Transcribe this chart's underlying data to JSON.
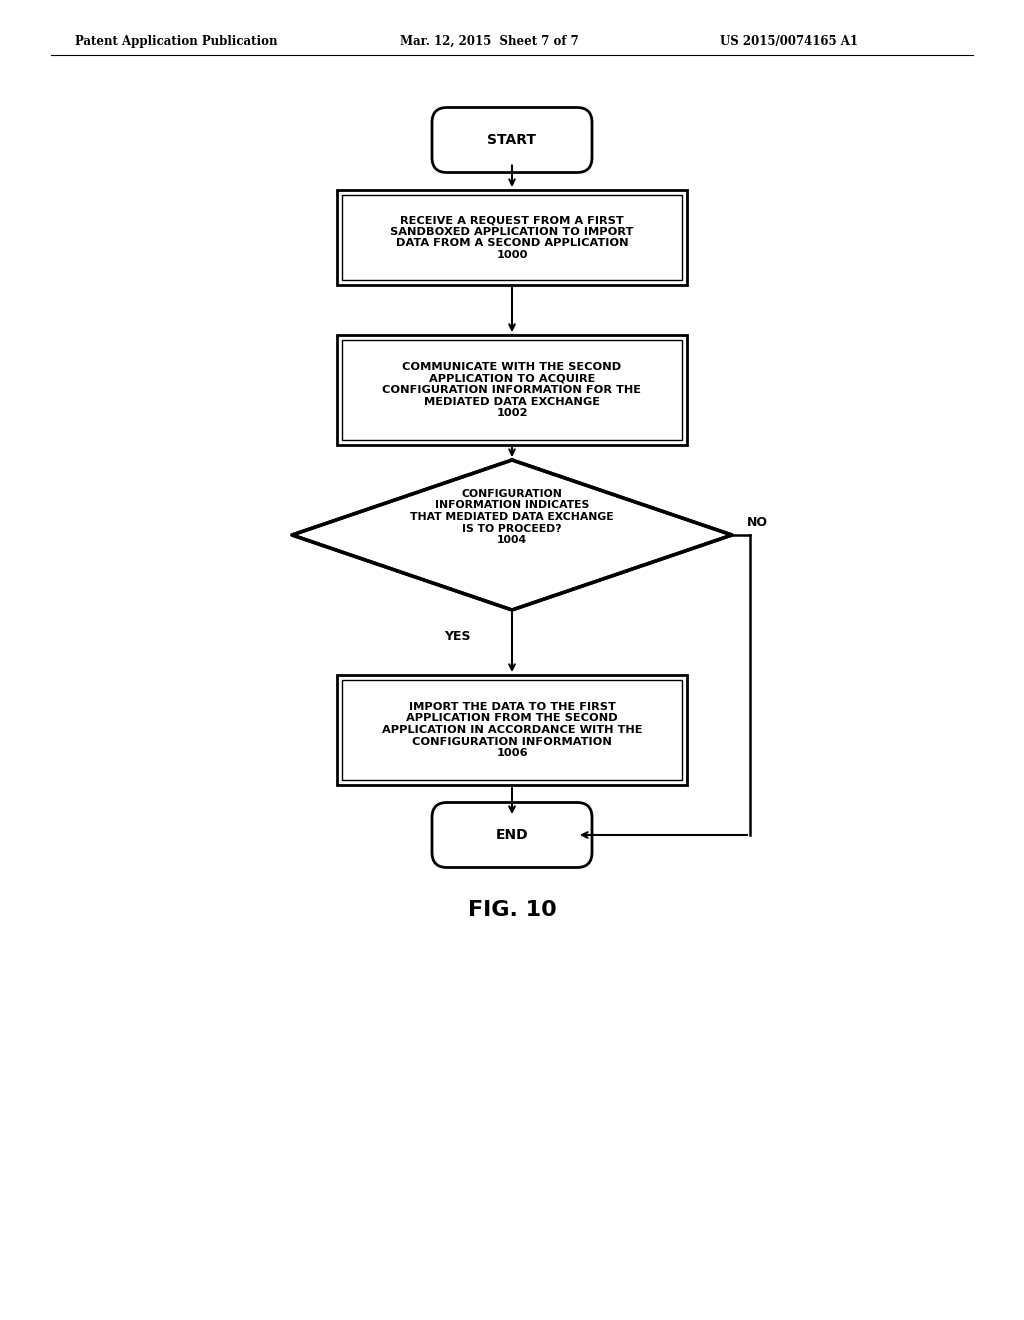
{
  "bg_color": "#ffffff",
  "header_left": "Patent Application Publication",
  "header_center": "Mar. 12, 2015  Sheet 7 of 7",
  "header_right": "US 2015/0074165 A1",
  "fig_label": "FIG. 10",
  "start_label": "START",
  "end_label": "END",
  "box1_text": "RECEIVE A REQUEST FROM A FIRST\nSANDBOXED APPLICATION TO IMPORT\nDATA FROM A SECOND APPLICATION\n1000",
  "box2_text": "COMMUNICATE WITH THE SECOND\nAPPLICATION TO ACQUIRE\nCONFIGURATION INFORMATION FOR THE\nMEDIATED DATA EXCHANGE\n1002",
  "diamond_text": "CONFIGURATION\nINFORMATION INDICATES\nTHAT MEDIATED DATA EXCHANGE\nIS TO PROCEED?\n1004",
  "box3_text": "IMPORT THE DATA TO THE FIRST\nAPPLICATION FROM THE SECOND\nAPPLICATION IN ACCORDANCE WITH THE\nCONFIGURATION INFORMATION\n1006",
  "yes_label": "YES",
  "no_label": "NO"
}
